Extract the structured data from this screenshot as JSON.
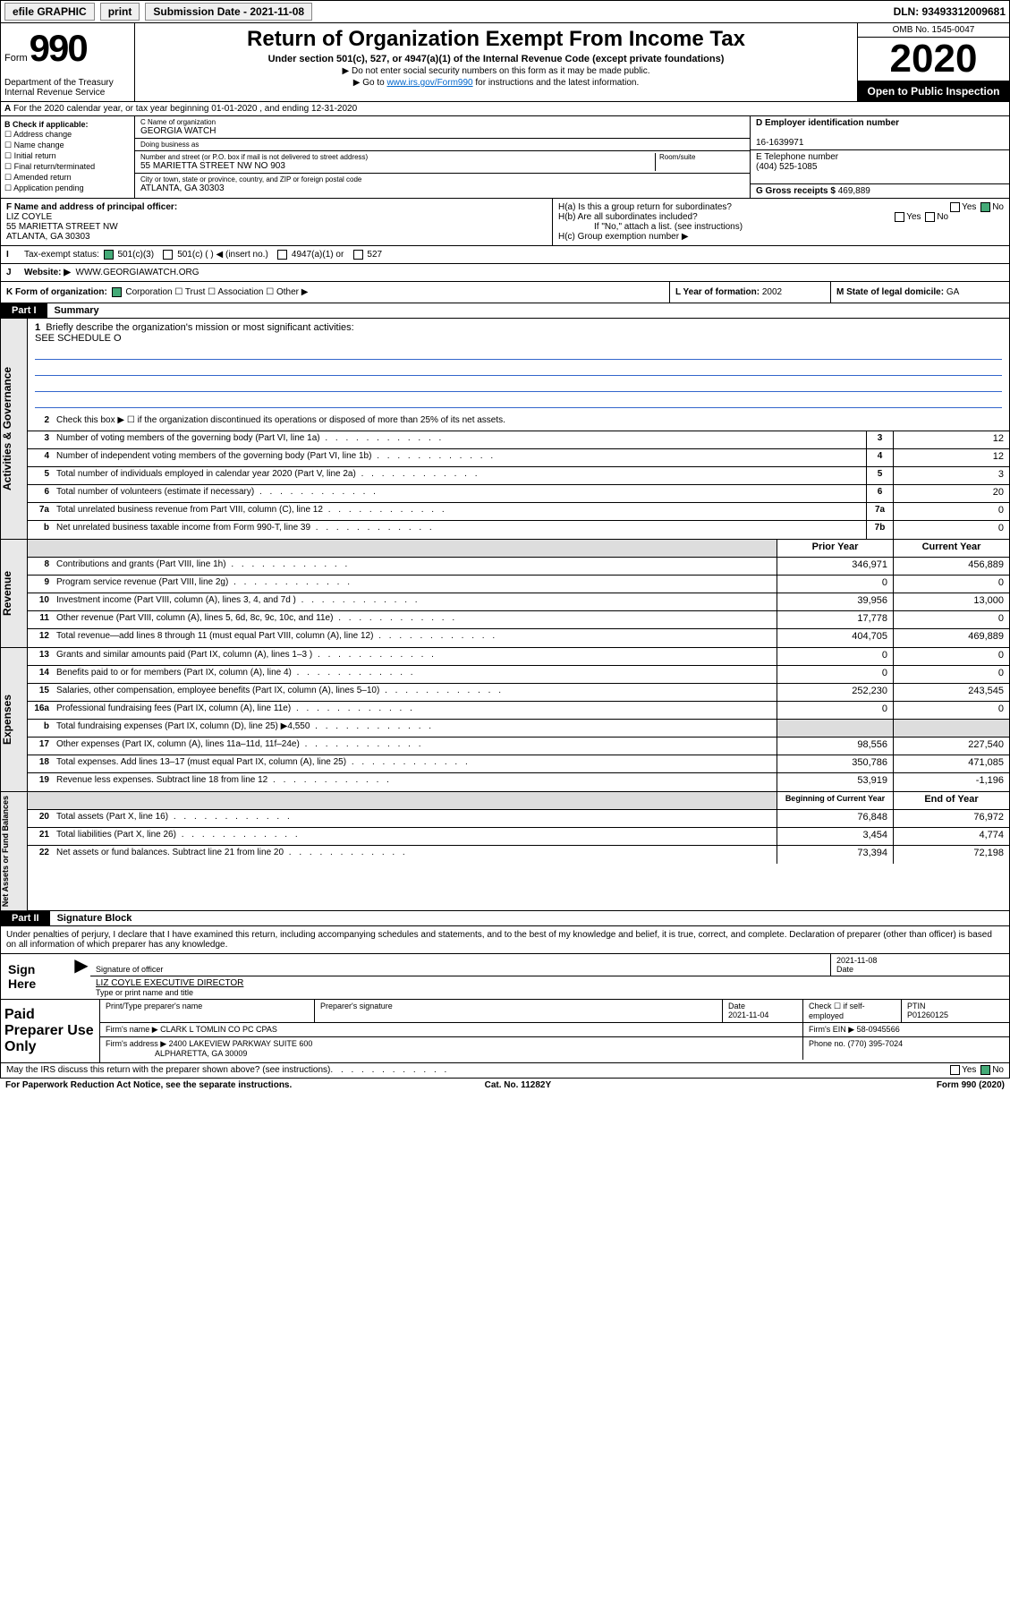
{
  "topbar": {
    "efile": "efile GRAPHIC",
    "print": "print",
    "subdate_label": "Submission Date - 2021-11-08",
    "dln": "DLN: 93493312009681"
  },
  "header": {
    "form_prefix": "Form",
    "form_num": "990",
    "dept": "Department of the Treasury Internal Revenue Service",
    "title": "Return of Organization Exempt From Income Tax",
    "sub": "Under section 501(c), 527, or 4947(a)(1) of the Internal Revenue Code (except private foundations)",
    "note1": "▶ Do not enter social security numbers on this form as it may be made public.",
    "note2_pre": "▶ Go to ",
    "note2_link": "www.irs.gov/Form990",
    "note2_post": " for instructions and the latest information.",
    "omb": "OMB No. 1545-0047",
    "year": "2020",
    "inspect": "Open to Public Inspection"
  },
  "row_a": "For the 2020 calendar year, or tax year beginning 01-01-2020    , and ending 12-31-2020",
  "section_b": {
    "label": "B Check if applicable:",
    "opts": [
      "☐ Address change",
      "☐ Name change",
      "☐ Initial return",
      "☐ Final return/terminated",
      "☐ Amended return",
      "☐ Application pending"
    ]
  },
  "section_c": {
    "name_lbl": "C Name of organization",
    "name": "GEORGIA WATCH",
    "dba_lbl": "Doing business as",
    "dba": "",
    "addr_lbl": "Number and street (or P.O. box if mail is not delivered to street address)",
    "addr": "55 MARIETTA STREET NW NO 903",
    "room_lbl": "Room/suite",
    "city_lbl": "City or town, state or province, country, and ZIP or foreign postal code",
    "city": "ATLANTA, GA  30303"
  },
  "section_d": {
    "ein_lbl": "D Employer identification number",
    "ein": "16-1639971",
    "tel_lbl": "E Telephone number",
    "tel": "(404) 525-1085",
    "gross_lbl": "G Gross receipts $ ",
    "gross": "469,889"
  },
  "section_f": {
    "lbl": "F Name and address of principal officer:",
    "name": "LIZ COYLE",
    "addr1": "55 MARIETTA STREET NW",
    "addr2": "ATLANTA, GA  30303"
  },
  "section_h": {
    "ha": "H(a)  Is this a group return for subordinates?",
    "hb": "H(b)  Are all subordinates included?",
    "hb_note": "If \"No,\" attach a list. (see instructions)",
    "hc": "H(c)  Group exemption number ▶"
  },
  "section_i": {
    "lbl": "Tax-exempt status:",
    "o1": "501(c)(3)",
    "o2": "501(c) (  ) ◀ (insert no.)",
    "o3": "4947(a)(1) or",
    "o4": "527"
  },
  "section_j": {
    "lbl": "Website: ▶",
    "val": "WWW.GEORGIAWATCH.ORG"
  },
  "section_k": {
    "lbl": "K Form of organization:",
    "opts": "Corporation  ☐ Trust  ☐ Association  ☐ Other ▶"
  },
  "section_l": {
    "lbl": "L Year of formation: ",
    "val": "2002"
  },
  "section_m": {
    "lbl": "M State of legal domicile: ",
    "val": "GA"
  },
  "part1": {
    "hdr": "Part I",
    "title": "Summary",
    "q1": "Briefly describe the organization's mission or most significant activities:",
    "q1v": "SEE SCHEDULE O",
    "q2": "Check this box ▶ ☐  if the organization discontinued its operations or disposed of more than 25% of its net assets."
  },
  "sides": {
    "gov": "Activities & Governance",
    "rev": "Revenue",
    "exp": "Expenses",
    "net": "Net Assets or Fund Balances"
  },
  "gov_rows": [
    {
      "n": "3",
      "d": "Number of voting members of the governing body (Part VI, line 1a)",
      "b": "3",
      "v": "12"
    },
    {
      "n": "4",
      "d": "Number of independent voting members of the governing body (Part VI, line 1b)",
      "b": "4",
      "v": "12"
    },
    {
      "n": "5",
      "d": "Total number of individuals employed in calendar year 2020 (Part V, line 2a)",
      "b": "5",
      "v": "3"
    },
    {
      "n": "6",
      "d": "Total number of volunteers (estimate if necessary)",
      "b": "6",
      "v": "20"
    },
    {
      "n": "7a",
      "d": "Total unrelated business revenue from Part VIII, column (C), line 12",
      "b": "7a",
      "v": "0"
    },
    {
      "n": "b",
      "d": "Net unrelated business taxable income from Form 990-T, line 39",
      "b": "7b",
      "v": "0"
    }
  ],
  "col_hdrs": {
    "prior": "Prior Year",
    "curr": "Current Year",
    "beg": "Beginning of Current Year",
    "end": "End of Year"
  },
  "rev_rows": [
    {
      "n": "8",
      "d": "Contributions and grants (Part VIII, line 1h)",
      "p": "346,971",
      "c": "456,889"
    },
    {
      "n": "9",
      "d": "Program service revenue (Part VIII, line 2g)",
      "p": "0",
      "c": "0"
    },
    {
      "n": "10",
      "d": "Investment income (Part VIII, column (A), lines 3, 4, and 7d )",
      "p": "39,956",
      "c": "13,000"
    },
    {
      "n": "11",
      "d": "Other revenue (Part VIII, column (A), lines 5, 6d, 8c, 9c, 10c, and 11e)",
      "p": "17,778",
      "c": "0"
    },
    {
      "n": "12",
      "d": "Total revenue—add lines 8 through 11 (must equal Part VIII, column (A), line 12)",
      "p": "404,705",
      "c": "469,889"
    }
  ],
  "exp_rows": [
    {
      "n": "13",
      "d": "Grants and similar amounts paid (Part IX, column (A), lines 1–3 )",
      "p": "0",
      "c": "0"
    },
    {
      "n": "14",
      "d": "Benefits paid to or for members (Part IX, column (A), line 4)",
      "p": "0",
      "c": "0"
    },
    {
      "n": "15",
      "d": "Salaries, other compensation, employee benefits (Part IX, column (A), lines 5–10)",
      "p": "252,230",
      "c": "243,545"
    },
    {
      "n": "16a",
      "d": "Professional fundraising fees (Part IX, column (A), line 11e)",
      "p": "0",
      "c": "0"
    },
    {
      "n": "b",
      "d": "Total fundraising expenses (Part IX, column (D), line 25) ▶4,550",
      "p": "",
      "c": "",
      "shade": true
    },
    {
      "n": "17",
      "d": "Other expenses (Part IX, column (A), lines 11a–11d, 11f–24e)",
      "p": "98,556",
      "c": "227,540"
    },
    {
      "n": "18",
      "d": "Total expenses. Add lines 13–17 (must equal Part IX, column (A), line 25)",
      "p": "350,786",
      "c": "471,085"
    },
    {
      "n": "19",
      "d": "Revenue less expenses. Subtract line 18 from line 12",
      "p": "53,919",
      "c": "-1,196"
    }
  ],
  "net_rows": [
    {
      "n": "20",
      "d": "Total assets (Part X, line 16)",
      "p": "76,848",
      "c": "76,972"
    },
    {
      "n": "21",
      "d": "Total liabilities (Part X, line 26)",
      "p": "3,454",
      "c": "4,774"
    },
    {
      "n": "22",
      "d": "Net assets or fund balances. Subtract line 21 from line 20",
      "p": "73,394",
      "c": "72,198"
    }
  ],
  "part2": {
    "hdr": "Part II",
    "title": "Signature Block",
    "perjury": "Under penalties of perjury, I declare that I have examined this return, including accompanying schedules and statements, and to the best of my knowledge and belief, it is true, correct, and complete. Declaration of preparer (other than officer) is based on all information of which preparer has any knowledge."
  },
  "sign": {
    "label": "Sign Here",
    "sig_lbl": "Signature of officer",
    "date": "2021-11-08",
    "date_lbl": "Date",
    "name": "LIZ COYLE  EXECUTIVE DIRECTOR",
    "name_lbl": "Type or print name and title"
  },
  "paid": {
    "label": "Paid Preparer Use Only",
    "prep_name_lbl": "Print/Type preparer's name",
    "prep_sig_lbl": "Preparer's signature",
    "prep_date_lbl": "Date",
    "prep_date": "2021-11-04",
    "self_lbl": "Check ☐ if self-employed",
    "ptin_lbl": "PTIN",
    "ptin": "P01260125",
    "firm_name_lbl": "Firm's name    ▶",
    "firm_name": "CLARK L TOMLIN CO PC CPAS",
    "firm_ein_lbl": "Firm's EIN ▶",
    "firm_ein": "58-0945566",
    "firm_addr_lbl": "Firm's address ▶",
    "firm_addr1": "2400 LAKEVIEW PARKWAY SUITE 600",
    "firm_addr2": "ALPHARETTA, GA  30009",
    "phone_lbl": "Phone no.",
    "phone": "(770) 395-7024"
  },
  "footer": {
    "discuss": "May the IRS discuss this return with the preparer shown above? (see instructions)",
    "pra": "For Paperwork Reduction Act Notice, see the separate instructions.",
    "cat": "Cat. No. 11282Y",
    "form": "Form 990 (2020)"
  }
}
